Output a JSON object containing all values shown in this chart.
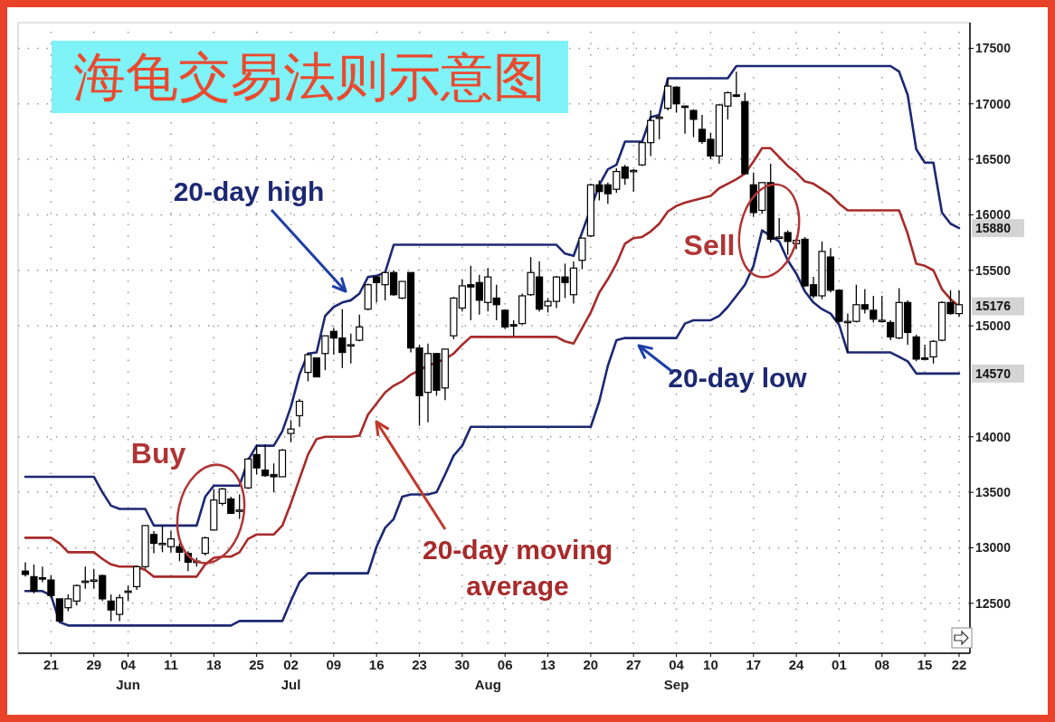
{
  "chart_data": {
    "type": "candlestick",
    "title": "海龟交易法则示意图",
    "categories": [
      null,
      null,
      null,
      "21",
      null,
      null,
      null,
      null,
      "29",
      null,
      null,
      null,
      "04\nJun",
      null,
      null,
      null,
      null,
      "11",
      null,
      null,
      null,
      null,
      "18",
      null,
      null,
      null,
      null,
      "25",
      null,
      null,
      null,
      "02\nJul",
      null,
      null,
      null,
      null,
      "09",
      null,
      null,
      null,
      null,
      "16",
      null,
      null,
      null,
      null,
      "23",
      null,
      null,
      null,
      null,
      "30",
      null,
      null,
      "\nAug",
      null,
      "06",
      null,
      null,
      null,
      null,
      "13",
      null,
      null,
      null,
      null,
      "20",
      null,
      null,
      null,
      null,
      "27",
      null,
      null,
      null,
      null,
      "04\nSep",
      null,
      null,
      null,
      "10",
      null,
      null,
      null,
      null,
      "17",
      null,
      null,
      null,
      null,
      "24",
      null,
      null,
      null,
      null,
      "01",
      null,
      null,
      null,
      null,
      "08",
      null,
      null,
      null,
      null,
      "15",
      null,
      null,
      null,
      "22"
    ],
    "ohlc": [
      [
        12790,
        12870,
        12740,
        12760
      ],
      [
        12740,
        12850,
        12590,
        12610
      ],
      [
        12730,
        12830,
        12690,
        12720
      ],
      [
        12710,
        12750,
        12550,
        12570
      ],
      [
        12540,
        12540,
        12330,
        12340
      ],
      [
        12460,
        12580,
        12430,
        12540
      ],
      [
        12520,
        12670,
        12480,
        12660
      ],
      [
        12700,
        12830,
        12630,
        12700
      ],
      [
        12700,
        12810,
        12630,
        12710
      ],
      [
        12750,
        12760,
        12520,
        12540
      ],
      [
        12520,
        12580,
        12340,
        12440
      ],
      [
        12400,
        12580,
        12340,
        12550
      ],
      [
        12600,
        12660,
        12520,
        12610
      ],
      [
        12650,
        12830,
        12620,
        12830
      ],
      [
        12830,
        13200,
        12810,
        13200
      ],
      [
        13120,
        13150,
        12950,
        13040
      ],
      [
        13030,
        13200,
        12960,
        13040
      ],
      [
        13010,
        13150,
        12960,
        13080
      ],
      [
        13010,
        13040,
        12880,
        12960
      ],
      [
        12950,
        12970,
        12790,
        12870
      ],
      [
        12880,
        12910,
        12830,
        12870
      ],
      [
        12950,
        13100,
        12930,
        13090
      ],
      [
        13160,
        13530,
        13160,
        13430
      ],
      [
        13400,
        13540,
        13380,
        13530
      ],
      [
        13440,
        13460,
        13310,
        13310
      ],
      [
        13330,
        13480,
        13260,
        13340
      ],
      [
        13540,
        13810,
        13530,
        13800
      ],
      [
        13840,
        13930,
        13660,
        13720
      ],
      [
        13700,
        13930,
        13640,
        13650
      ],
      [
        13660,
        13760,
        13500,
        13640
      ],
      [
        13640,
        13890,
        13640,
        13880
      ],
      [
        14030,
        14150,
        13950,
        14070
      ],
      [
        14190,
        14340,
        14090,
        14320
      ],
      [
        14580,
        14750,
        14500,
        14740
      ],
      [
        14710,
        14710,
        14540,
        14540
      ],
      [
        14750,
        14910,
        14600,
        14910
      ],
      [
        14950,
        14980,
        14740,
        14890
      ],
      [
        14890,
        15150,
        14620,
        14760
      ],
      [
        14830,
        14930,
        14660,
        14830
      ],
      [
        14870,
        15100,
        14860,
        14990
      ],
      [
        15150,
        15380,
        15140,
        15370
      ],
      [
        15440,
        15450,
        15210,
        15390
      ],
      [
        15370,
        15480,
        15230,
        15480
      ],
      [
        15480,
        15500,
        15270,
        15280
      ],
      [
        15250,
        15400,
        15240,
        15400
      ],
      [
        15480,
        15480,
        14760,
        14800
      ],
      [
        14800,
        14830,
        14100,
        14370
      ],
      [
        14400,
        14840,
        14130,
        14750
      ],
      [
        14750,
        14750,
        14370,
        14420
      ],
      [
        14440,
        14790,
        14330,
        14790
      ],
      [
        14910,
        15260,
        14880,
        15250
      ],
      [
        15160,
        15420,
        15130,
        15360
      ],
      [
        15370,
        15540,
        15050,
        15350
      ],
      [
        15390,
        15460,
        15100,
        15230
      ],
      [
        15210,
        15520,
        15130,
        15440
      ],
      [
        15250,
        15370,
        15050,
        15190
      ],
      [
        15140,
        15150,
        14970,
        14990
      ],
      [
        15010,
        15050,
        14910,
        15000
      ],
      [
        15020,
        15290,
        15010,
        15270
      ],
      [
        15280,
        15620,
        15270,
        15480
      ],
      [
        15440,
        15580,
        15130,
        15150
      ],
      [
        15180,
        15250,
        15120,
        15220
      ],
      [
        15220,
        15450,
        15160,
        15440
      ],
      [
        15440,
        15560,
        15250,
        15390
      ],
      [
        15280,
        15580,
        15200,
        15520
      ],
      [
        15590,
        15790,
        15510,
        15790
      ],
      [
        15810,
        16280,
        15800,
        16270
      ],
      [
        16270,
        16310,
        16130,
        16210
      ],
      [
        16270,
        16290,
        16100,
        16190
      ],
      [
        16230,
        16420,
        16200,
        16390
      ],
      [
        16430,
        16450,
        16270,
        16330
      ],
      [
        16400,
        16410,
        16210,
        16400
      ],
      [
        16450,
        16650,
        16440,
        16650
      ],
      [
        16650,
        16940,
        16530,
        16850
      ],
      [
        16870,
        16900,
        16680,
        16880
      ],
      [
        16960,
        17230,
        16940,
        17160
      ],
      [
        17150,
        17160,
        16920,
        17000
      ],
      [
        16980,
        16980,
        16730,
        16970
      ],
      [
        16940,
        16950,
        16700,
        16860
      ],
      [
        16770,
        16900,
        16640,
        16660
      ],
      [
        16680,
        16740,
        16500,
        16530
      ],
      [
        16530,
        17000,
        16460,
        16990
      ],
      [
        16980,
        17110,
        16860,
        17100
      ],
      [
        17080,
        17290,
        17060,
        17070
      ],
      [
        17020,
        17100,
        16370,
        16370
      ],
      [
        16270,
        16380,
        15980,
        16020
      ],
      [
        16040,
        16290,
        16010,
        16290
      ],
      [
        16290,
        16460,
        15750,
        15780
      ],
      [
        15800,
        15970,
        15780,
        15800
      ],
      [
        15840,
        15860,
        15640,
        15760
      ],
      [
        15740,
        15790,
        15690,
        15770
      ],
      [
        15780,
        15800,
        15350,
        15360
      ],
      [
        15370,
        15440,
        15250,
        15270
      ],
      [
        15270,
        15760,
        15240,
        15670
      ],
      [
        15620,
        15700,
        15300,
        15320
      ],
      [
        15320,
        15330,
        15030,
        15040
      ],
      [
        15030,
        15110,
        14760,
        15040
      ],
      [
        15040,
        15370,
        15030,
        15190
      ],
      [
        15190,
        15330,
        15110,
        15150
      ],
      [
        15140,
        15270,
        15030,
        15060
      ],
      [
        15050,
        15270,
        15030,
        15050
      ],
      [
        15030,
        15050,
        14870,
        14900
      ],
      [
        14890,
        15340,
        14880,
        15210
      ],
      [
        15210,
        15230,
        14830,
        14940
      ],
      [
        14900,
        14920,
        14680,
        14700
      ],
      [
        14710,
        14830,
        14700,
        14700
      ],
      [
        14720,
        14870,
        14660,
        14860
      ],
      [
        14870,
        15220,
        14860,
        15210
      ],
      [
        15210,
        15320,
        15100,
        15110
      ],
      [
        15110,
        15320,
        15080,
        15190
      ]
    ],
    "series": [
      {
        "type": "line",
        "name": "20-day high",
        "color": "#1c2873",
        "values": [
          13640,
          13640,
          13640,
          13640,
          13640,
          13640,
          13640,
          13640,
          13640,
          13500,
          13380,
          13350,
          13350,
          13350,
          13350,
          13200,
          13200,
          13200,
          13200,
          13200,
          13200,
          13460,
          13560,
          13560,
          13560,
          13560,
          13790,
          13920,
          13920,
          13920,
          14050,
          14270,
          14560,
          14750,
          14760,
          15090,
          15170,
          15210,
          15230,
          15290,
          15440,
          15450,
          15480,
          15730,
          15730,
          15730,
          15730,
          15730,
          15730,
          15730,
          15730,
          15730,
          15730,
          15730,
          15730,
          15730,
          15730,
          15730,
          15730,
          15730,
          15730,
          15730,
          15730,
          15650,
          15630,
          null,
          null,
          16270,
          16410,
          16450,
          16660,
          16660,
          16660,
          16880,
          16900,
          17230,
          17230,
          17230,
          17230,
          17230,
          17230,
          17230,
          17230,
          17340,
          17340,
          17340,
          17340,
          17340,
          17340,
          17340,
          17340,
          17340,
          17340,
          17340,
          17340,
          17340,
          17340,
          17340,
          17340,
          17340,
          17340,
          17340,
          17290,
          17080,
          16590,
          16470,
          16470,
          16020,
          15920,
          15880
        ],
        "value_labels": [
          null,
          null,
          null,
          null,
          null,
          null,
          null,
          null,
          null,
          null,
          null,
          null,
          null,
          null,
          null,
          null,
          null,
          null,
          null,
          null,
          null,
          null,
          null,
          null,
          null,
          null,
          null,
          null,
          null,
          null,
          null,
          null,
          null,
          null,
          null,
          null,
          null,
          null,
          null,
          null,
          null,
          null,
          null,
          null,
          null,
          null,
          null,
          null,
          null,
          null,
          null,
          null,
          null,
          null,
          null,
          null,
          null,
          null,
          null,
          null,
          null,
          null,
          null,
          null,
          null,
          null,
          null,
          null,
          null,
          null,
          null,
          null,
          null,
          null,
          null,
          null,
          null,
          null,
          null,
          null,
          null,
          null,
          null,
          null,
          null,
          null,
          null,
          null,
          null,
          null,
          null,
          null,
          null,
          null,
          null,
          null,
          null,
          null,
          null,
          null,
          null,
          null,
          null,
          null,
          null,
          null,
          null,
          null,
          null,
          "15880"
        ]
      },
      {
        "type": "line",
        "name": "20-day low",
        "color": "#1c2873",
        "values": [
          12610,
          12610,
          12610,
          12570,
          12330,
          12300,
          12300,
          12300,
          12300,
          12300,
          12300,
          12300,
          12300,
          12300,
          12300,
          12300,
          12300,
          12300,
          12300,
          12300,
          12300,
          12300,
          12300,
          12300,
          12300,
          12340,
          12340,
          12340,
          12340,
          12340,
          12340,
          12520,
          12690,
          12770,
          12770,
          12770,
          12770,
          12770,
          12770,
          12770,
          12770,
          13010,
          13180,
          13260,
          13460,
          13480,
          13480,
          13480,
          13500,
          13660,
          13830,
          13920,
          14090,
          14090,
          14090,
          14090,
          14090,
          14090,
          14090,
          14090,
          14090,
          14090,
          14090,
          14090,
          14090,
          14090,
          14090,
          14320,
          14640,
          14870,
          14890,
          14890,
          14890,
          14890,
          14890,
          14890,
          14890,
          15020,
          15050,
          15050,
          15050,
          15090,
          15170,
          15270,
          15370,
          15540,
          15860,
          null,
          15760,
          15590,
          15470,
          15310,
          15210,
          15150,
          15110,
          15010,
          14760,
          14760,
          14760,
          14760,
          14760,
          14760,
          14720,
          14680,
          14570,
          14570,
          14570,
          14570,
          14570,
          14570
        ],
        "value_labels": [
          null,
          null,
          null,
          null,
          null,
          null,
          null,
          null,
          null,
          null,
          null,
          null,
          null,
          null,
          null,
          null,
          null,
          null,
          null,
          null,
          null,
          null,
          null,
          null,
          null,
          null,
          null,
          null,
          null,
          null,
          null,
          null,
          null,
          null,
          null,
          null,
          null,
          null,
          null,
          null,
          null,
          null,
          null,
          null,
          null,
          null,
          null,
          null,
          null,
          null,
          null,
          null,
          null,
          null,
          null,
          null,
          null,
          null,
          null,
          null,
          null,
          null,
          null,
          null,
          null,
          null,
          null,
          null,
          null,
          null,
          null,
          null,
          null,
          null,
          null,
          null,
          null,
          null,
          null,
          null,
          null,
          null,
          null,
          null,
          null,
          null,
          null,
          null,
          null,
          null,
          null,
          null,
          null,
          null,
          null,
          null,
          null,
          null,
          null,
          null,
          null,
          null,
          null,
          null,
          null,
          null,
          null,
          null,
          null,
          "14570"
        ]
      },
      {
        "type": "line",
        "name": "20-day moving average",
        "color": "#a82a2a",
        "values": [
          13090,
          13090,
          13090,
          13090,
          13040,
          12960,
          12960,
          12960,
          12960,
          12900,
          12850,
          12830,
          12830,
          12830,
          12800,
          12740,
          12740,
          12740,
          12740,
          12740,
          12740,
          12850,
          12910,
          12920,
          12920,
          12960,
          13080,
          13120,
          13120,
          13120,
          13200,
          13400,
          13620,
          13840,
          13980,
          14000,
          14000,
          14000,
          14000,
          14010,
          14200,
          14300,
          14400,
          14460,
          14500,
          14560,
          null,
          14640,
          null,
          14700,
          14750,
          14830,
          14900,
          14900,
          14900,
          14900,
          14900,
          14900,
          14900,
          14900,
          14900,
          14900,
          14900,
          14860,
          14840,
          14980,
          15120,
          15300,
          15420,
          15560,
          15740,
          15790,
          15800,
          15850,
          15920,
          16030,
          16080,
          16110,
          16130,
          16150,
          16170,
          16240,
          16280,
          16320,
          16370,
          16480,
          16600,
          16600,
          16520,
          16440,
          16380,
          16300,
          16280,
          16230,
          16180,
          16100,
          16040,
          16040,
          16040,
          16040,
          16040,
          16040,
          16040,
          15830,
          15560,
          15540,
          15500,
          15330,
          15240,
          15176
        ],
        "value_labels": [
          null,
          null,
          null,
          null,
          null,
          null,
          null,
          null,
          null,
          null,
          null,
          null,
          null,
          null,
          null,
          null,
          null,
          null,
          null,
          null,
          null,
          null,
          null,
          null,
          null,
          null,
          null,
          null,
          null,
          null,
          null,
          null,
          null,
          null,
          null,
          null,
          null,
          null,
          null,
          null,
          null,
          null,
          null,
          null,
          null,
          null,
          null,
          null,
          null,
          null,
          null,
          null,
          null,
          null,
          null,
          null,
          null,
          null,
          null,
          null,
          null,
          null,
          null,
          null,
          null,
          null,
          null,
          null,
          null,
          null,
          null,
          null,
          null,
          null,
          null,
          null,
          null,
          null,
          null,
          null,
          null,
          null,
          null,
          null,
          null,
          null,
          null,
          null,
          null,
          null,
          null,
          null,
          null,
          null,
          null,
          null,
          null,
          null,
          null,
          null,
          null,
          null,
          null,
          null,
          null,
          null,
          null,
          null,
          null,
          "15176"
        ]
      }
    ],
    "annotations": [
      "Buy",
      "Sell"
    ],
    "ylim": [
      12050,
      17650
    ],
    "yticks": [
      12500,
      13000,
      13500,
      14000,
      15000,
      15500,
      16000,
      16500,
      17000,
      17500
    ],
    "grid": true
  }
}
